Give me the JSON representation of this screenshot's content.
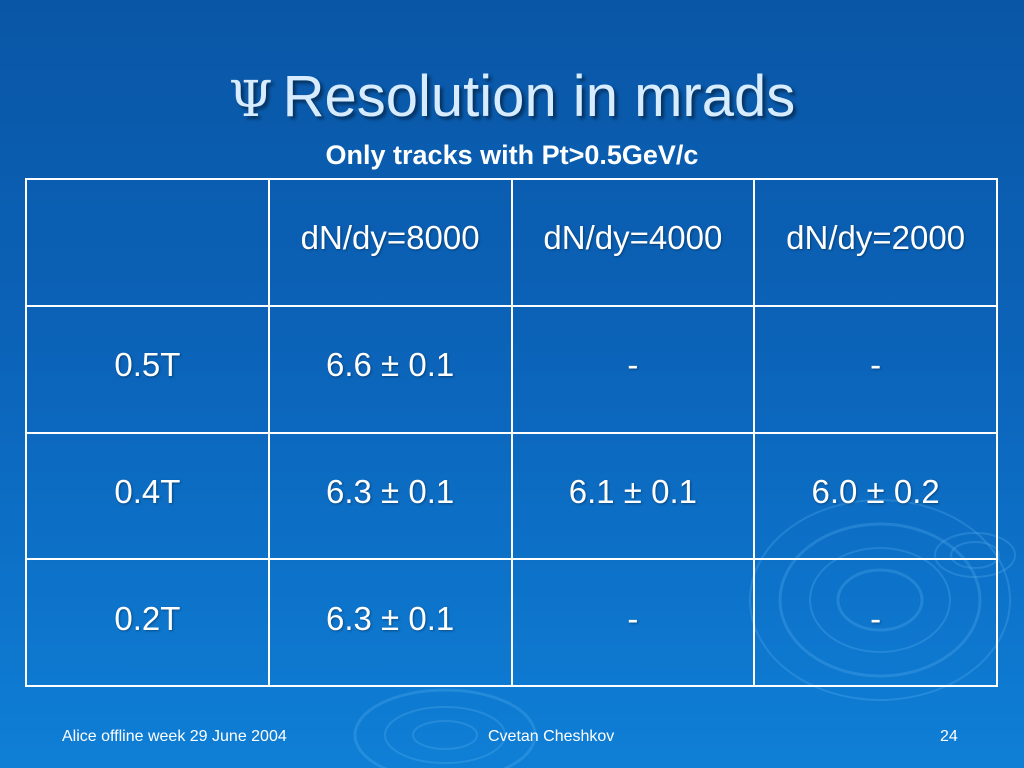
{
  "slide": {
    "title_symbol": "Ψ",
    "title_text": "Resolution in mrads",
    "subtitle": "Only tracks with Pt>0.5GeV/c"
  },
  "table": {
    "header": [
      "",
      "dN/dy=8000",
      "dN/dy=4000",
      "dN/dy=2000"
    ],
    "rows": [
      [
        "0.5T",
        "6.6 ± 0.1",
        "-",
        "-"
      ],
      [
        "0.4T",
        "6.3 ± 0.1",
        "6.1 ± 0.1",
        "6.0 ± 0.2"
      ],
      [
        "0.2T",
        "6.3 ± 0.1",
        "-",
        "-"
      ]
    ]
  },
  "footer": {
    "left": "Alice offline week 29 June 2004",
    "center": "Cvetan Cheshkov",
    "page_number": "24"
  },
  "colors": {
    "background_top": "#0a56a6",
    "background_bottom": "#0f7fd6",
    "title_text": "#d7ecff",
    "table_border": "#ffffff"
  }
}
